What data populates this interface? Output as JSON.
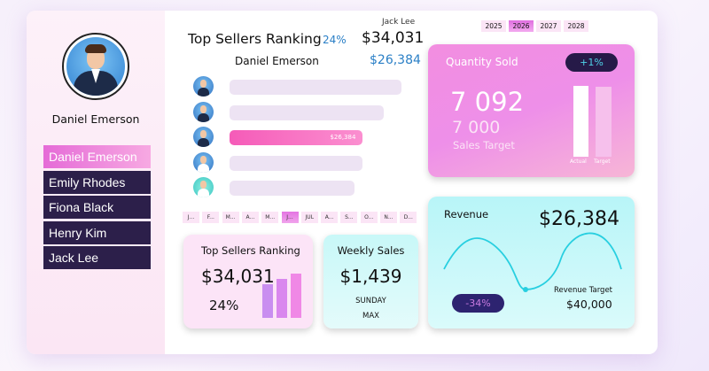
{
  "sidebar": {
    "user_name": "Daniel Emerson",
    "items": [
      {
        "label": "Daniel Emerson",
        "active": true
      },
      {
        "label": "Emily Rhodes"
      },
      {
        "label": "Fiona Black"
      },
      {
        "label": "Henry Kim"
      },
      {
        "label": "Jack Lee"
      }
    ]
  },
  "ranking": {
    "title": "Top Sellers Ranking",
    "percent": "24%",
    "top_name": "Jack Lee",
    "top_value": "$34,031",
    "selected_name": "Daniel Emerson",
    "selected_value": "$26,384",
    "bar_label": "$26,384",
    "bars": [
      {
        "name": "Jack Lee",
        "value": 34031
      },
      {
        "name": "Henry Kim",
        "value": 30500
      },
      {
        "name": "Daniel Emerson",
        "value": 26384,
        "highlight": true
      },
      {
        "name": "Fiona Black",
        "value": 26300
      },
      {
        "name": "Emily Rhodes",
        "value": 24800
      }
    ]
  },
  "months": {
    "items": [
      "J...",
      "F...",
      "M...",
      "A...",
      "M...",
      "J...",
      "JUL",
      "A...",
      "S...",
      "O...",
      "N...",
      "D..."
    ],
    "selected": 5
  },
  "years": {
    "items": [
      "2025",
      "2026",
      "2027",
      "2028"
    ],
    "selected": 1
  },
  "quantity": {
    "title": "Quantity Sold",
    "change": "+1%",
    "actual": "7 092",
    "target": "7 000",
    "target_label": "Sales Target",
    "bar_actual_label": "Actual",
    "bar_target_label": "Target",
    "colors": {
      "change_text": "#4fd3e8",
      "badge": "#261a48"
    }
  },
  "kpi_ranking": {
    "title": "Top Sellers Ranking",
    "value": "$34,031",
    "percent": "24%"
  },
  "weekly": {
    "title": "Weekly Sales",
    "value": "$1,439",
    "day": "SUNDAY",
    "note": "MAX"
  },
  "revenue": {
    "title": "Revenue",
    "value": "$26,384",
    "change": "-34%",
    "target_label": "Revenue Target",
    "target_value": "$40,000",
    "colors": {
      "line": "#28cfe0",
      "change_text": "#c97be0"
    }
  }
}
